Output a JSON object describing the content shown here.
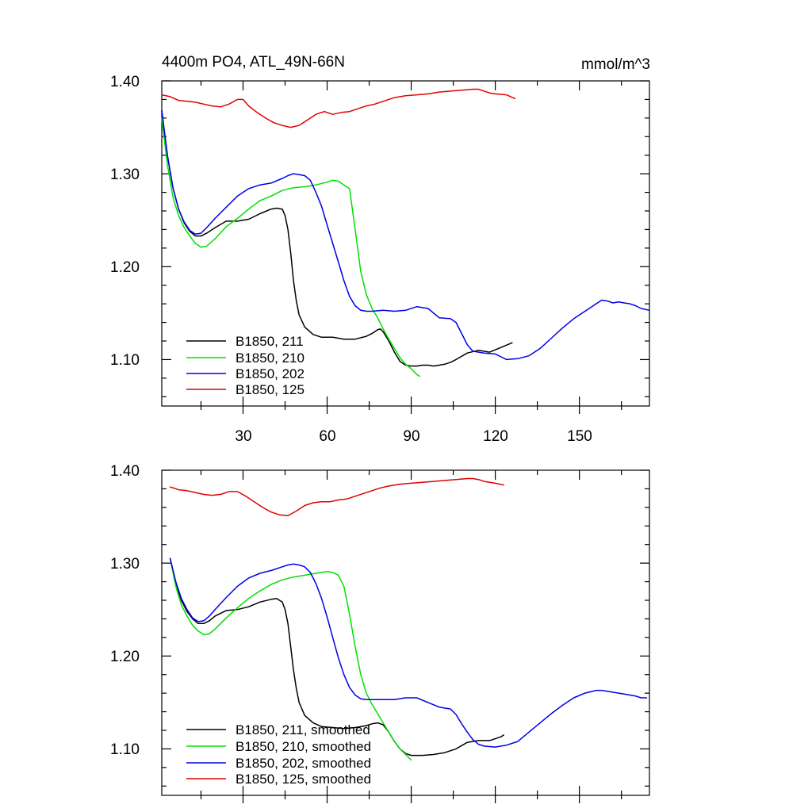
{
  "colors": {
    "black": "#000000",
    "green": "#00e000",
    "blue": "#0000e6",
    "red": "#e00000"
  },
  "chart_data": [
    {
      "type": "line",
      "title": "4400m PO4, ATL_49N-66N",
      "units": "mmol/m^3",
      "xlim": [
        1,
        175
      ],
      "ylim": [
        1.05,
        1.4
      ],
      "xticks": [
        "30",
        "60",
        "90",
        "120",
        "150"
      ],
      "yticks": [
        "1.10",
        "1.20",
        "1.30",
        "1.40"
      ],
      "series": [
        {
          "name": "B1850, 211",
          "color": "black",
          "x": [
            1,
            3,
            5,
            7,
            9,
            11,
            13,
            15,
            17,
            20,
            24,
            28,
            32,
            36,
            40,
            42,
            44,
            45,
            46,
            47,
            48,
            49,
            50,
            52,
            55,
            58,
            62,
            66,
            70,
            74,
            76,
            78,
            79,
            80,
            82,
            84,
            86,
            88,
            90,
            92,
            94,
            96,
            98,
            100,
            102,
            104,
            106,
            110,
            114,
            118,
            122,
            126
          ],
          "y": [
            1.368,
            1.32,
            1.285,
            1.262,
            1.247,
            1.238,
            1.233,
            1.233,
            1.236,
            1.242,
            1.249,
            1.249,
            1.251,
            1.257,
            1.262,
            1.263,
            1.262,
            1.255,
            1.24,
            1.215,
            1.185,
            1.163,
            1.148,
            1.135,
            1.127,
            1.124,
            1.124,
            1.122,
            1.122,
            1.125,
            1.128,
            1.132,
            1.133,
            1.13,
            1.12,
            1.108,
            1.098,
            1.094,
            1.093,
            1.093,
            1.094,
            1.094,
            1.093,
            1.094,
            1.095,
            1.097,
            1.1,
            1.107,
            1.11,
            1.108,
            1.113,
            1.118
          ]
        },
        {
          "name": "B1850, 210",
          "color": "green",
          "x": [
            1,
            3,
            5,
            7,
            9,
            11,
            13,
            15,
            17,
            20,
            24,
            28,
            32,
            36,
            40,
            44,
            48,
            52,
            56,
            60,
            62,
            64,
            66,
            68,
            70,
            72,
            74,
            76,
            78,
            80,
            82,
            84,
            86,
            88,
            90,
            92,
            93
          ],
          "y": [
            1.36,
            1.31,
            1.275,
            1.255,
            1.242,
            1.233,
            1.225,
            1.221,
            1.222,
            1.23,
            1.243,
            1.252,
            1.262,
            1.271,
            1.276,
            1.282,
            1.285,
            1.286,
            1.288,
            1.291,
            1.293,
            1.292,
            1.288,
            1.284,
            1.24,
            1.195,
            1.17,
            1.155,
            1.145,
            1.133,
            1.122,
            1.112,
            1.102,
            1.095,
            1.09,
            1.084,
            1.082
          ]
        },
        {
          "name": "B1850, 202",
          "color": "blue",
          "x": [
            1,
            3,
            5,
            7,
            9,
            11,
            13,
            15,
            17,
            20,
            24,
            28,
            32,
            36,
            40,
            44,
            46,
            48,
            50,
            52,
            54,
            56,
            58,
            60,
            62,
            64,
            66,
            68,
            70,
            72,
            74,
            76,
            80,
            84,
            88,
            92,
            96,
            100,
            104,
            106,
            108,
            110,
            112,
            116,
            120,
            124,
            128,
            132,
            136,
            140,
            144,
            148,
            152,
            156,
            158,
            160,
            162,
            164,
            166,
            168,
            170,
            172,
            175
          ],
          "y": [
            1.368,
            1.32,
            1.285,
            1.262,
            1.248,
            1.239,
            1.235,
            1.236,
            1.242,
            1.252,
            1.264,
            1.276,
            1.284,
            1.288,
            1.29,
            1.295,
            1.298,
            1.3,
            1.299,
            1.298,
            1.293,
            1.28,
            1.265,
            1.245,
            1.225,
            1.205,
            1.185,
            1.168,
            1.158,
            1.153,
            1.152,
            1.152,
            1.153,
            1.152,
            1.153,
            1.157,
            1.155,
            1.145,
            1.144,
            1.14,
            1.128,
            1.116,
            1.109,
            1.107,
            1.106,
            1.1,
            1.101,
            1.104,
            1.112,
            1.123,
            1.134,
            1.144,
            1.152,
            1.16,
            1.164,
            1.163,
            1.161,
            1.162,
            1.161,
            1.16,
            1.158,
            1.155,
            1.153
          ]
        },
        {
          "name": "B1850, 125",
          "color": "red",
          "x": [
            1,
            4,
            7,
            10,
            13,
            16,
            19,
            22,
            25,
            28,
            30,
            32,
            35,
            38,
            41,
            44,
            47,
            50,
            53,
            56,
            59,
            62,
            65,
            68,
            71,
            74,
            77,
            80,
            84,
            88,
            92,
            96,
            100,
            104,
            108,
            112,
            114,
            116,
            118,
            120,
            124,
            127
          ],
          "y": [
            1.385,
            1.383,
            1.379,
            1.378,
            1.377,
            1.375,
            1.373,
            1.372,
            1.375,
            1.38,
            1.38,
            1.373,
            1.366,
            1.36,
            1.355,
            1.352,
            1.35,
            1.352,
            1.358,
            1.364,
            1.367,
            1.364,
            1.366,
            1.367,
            1.37,
            1.373,
            1.375,
            1.378,
            1.382,
            1.384,
            1.385,
            1.386,
            1.388,
            1.389,
            1.39,
            1.391,
            1.391,
            1.389,
            1.387,
            1.386,
            1.385,
            1.381
          ]
        }
      ]
    },
    {
      "type": "line",
      "title": "",
      "units": "",
      "xlim": [
        1,
        175
      ],
      "ylim": [
        1.05,
        1.4
      ],
      "xticks": [],
      "yticks": [
        "1.10",
        "1.20",
        "1.30",
        "1.40"
      ],
      "series": [
        {
          "name": "B1850, 211, smoothed",
          "color": "black",
          "x": [
            4,
            6,
            8,
            10,
            12,
            14,
            16,
            18,
            20,
            24,
            28,
            32,
            36,
            40,
            42,
            44,
            45,
            46,
            47,
            48,
            49,
            50,
            52,
            55,
            58,
            62,
            66,
            70,
            74,
            76,
            78,
            80,
            82,
            84,
            86,
            88,
            90,
            94,
            98,
            102,
            106,
            110,
            114,
            118,
            122,
            123
          ],
          "y": [
            1.305,
            1.278,
            1.26,
            1.248,
            1.24,
            1.235,
            1.235,
            1.238,
            1.243,
            1.249,
            1.25,
            1.253,
            1.258,
            1.261,
            1.262,
            1.258,
            1.25,
            1.235,
            1.21,
            1.185,
            1.165,
            1.15,
            1.136,
            1.128,
            1.124,
            1.123,
            1.122,
            1.123,
            1.125,
            1.127,
            1.128,
            1.126,
            1.118,
            1.108,
            1.1,
            1.095,
            1.093,
            1.093,
            1.094,
            1.096,
            1.1,
            1.107,
            1.109,
            1.109,
            1.113,
            1.115
          ]
        },
        {
          "name": "B1850, 210, smoothed",
          "color": "green",
          "x": [
            4,
            6,
            8,
            10,
            12,
            14,
            16,
            18,
            20,
            24,
            28,
            32,
            36,
            40,
            44,
            48,
            52,
            56,
            60,
            62,
            64,
            66,
            68,
            70,
            72,
            74,
            76,
            78,
            80,
            82,
            84,
            86,
            88,
            90
          ],
          "y": [
            1.305,
            1.275,
            1.255,
            1.243,
            1.233,
            1.227,
            1.223,
            1.224,
            1.229,
            1.241,
            1.252,
            1.262,
            1.27,
            1.277,
            1.282,
            1.285,
            1.287,
            1.289,
            1.291,
            1.29,
            1.287,
            1.275,
            1.245,
            1.21,
            1.18,
            1.16,
            1.148,
            1.138,
            1.128,
            1.118,
            1.108,
            1.1,
            1.094,
            1.088
          ]
        },
        {
          "name": "B1850, 202, smoothed",
          "color": "blue",
          "x": [
            4,
            6,
            8,
            10,
            12,
            14,
            16,
            18,
            20,
            24,
            28,
            32,
            36,
            40,
            44,
            46,
            48,
            50,
            52,
            54,
            56,
            58,
            60,
            62,
            64,
            66,
            68,
            70,
            72,
            74,
            76,
            80,
            84,
            88,
            92,
            96,
            100,
            104,
            106,
            108,
            110,
            112,
            114,
            116,
            120,
            124,
            128,
            132,
            136,
            140,
            144,
            148,
            152,
            156,
            158,
            160,
            162,
            164,
            166,
            168,
            170,
            172,
            174
          ],
          "y": [
            1.305,
            1.28,
            1.262,
            1.25,
            1.241,
            1.237,
            1.238,
            1.243,
            1.25,
            1.263,
            1.275,
            1.284,
            1.289,
            1.292,
            1.296,
            1.298,
            1.299,
            1.298,
            1.296,
            1.29,
            1.278,
            1.262,
            1.242,
            1.22,
            1.198,
            1.18,
            1.166,
            1.158,
            1.154,
            1.153,
            1.153,
            1.153,
            1.153,
            1.155,
            1.155,
            1.15,
            1.145,
            1.143,
            1.137,
            1.127,
            1.118,
            1.11,
            1.105,
            1.103,
            1.102,
            1.104,
            1.108,
            1.118,
            1.128,
            1.138,
            1.147,
            1.155,
            1.16,
            1.163,
            1.163,
            1.162,
            1.161,
            1.16,
            1.159,
            1.158,
            1.157,
            1.155,
            1.155
          ]
        },
        {
          "name": "B1850, 125, smoothed",
          "color": "red",
          "x": [
            4,
            7,
            10,
            13,
            16,
            19,
            22,
            25,
            28,
            31,
            34,
            37,
            40,
            43,
            46,
            49,
            52,
            55,
            58,
            61,
            64,
            67,
            70,
            73,
            76,
            79,
            82,
            86,
            90,
            94,
            98,
            102,
            106,
            110,
            112,
            114,
            116,
            118,
            120,
            123
          ],
          "y": [
            1.382,
            1.379,
            1.378,
            1.376,
            1.374,
            1.373,
            1.374,
            1.377,
            1.377,
            1.372,
            1.366,
            1.36,
            1.355,
            1.352,
            1.351,
            1.356,
            1.362,
            1.365,
            1.366,
            1.366,
            1.368,
            1.369,
            1.372,
            1.375,
            1.378,
            1.381,
            1.383,
            1.385,
            1.386,
            1.387,
            1.388,
            1.389,
            1.39,
            1.391,
            1.391,
            1.39,
            1.388,
            1.387,
            1.386,
            1.384
          ]
        }
      ]
    }
  ]
}
